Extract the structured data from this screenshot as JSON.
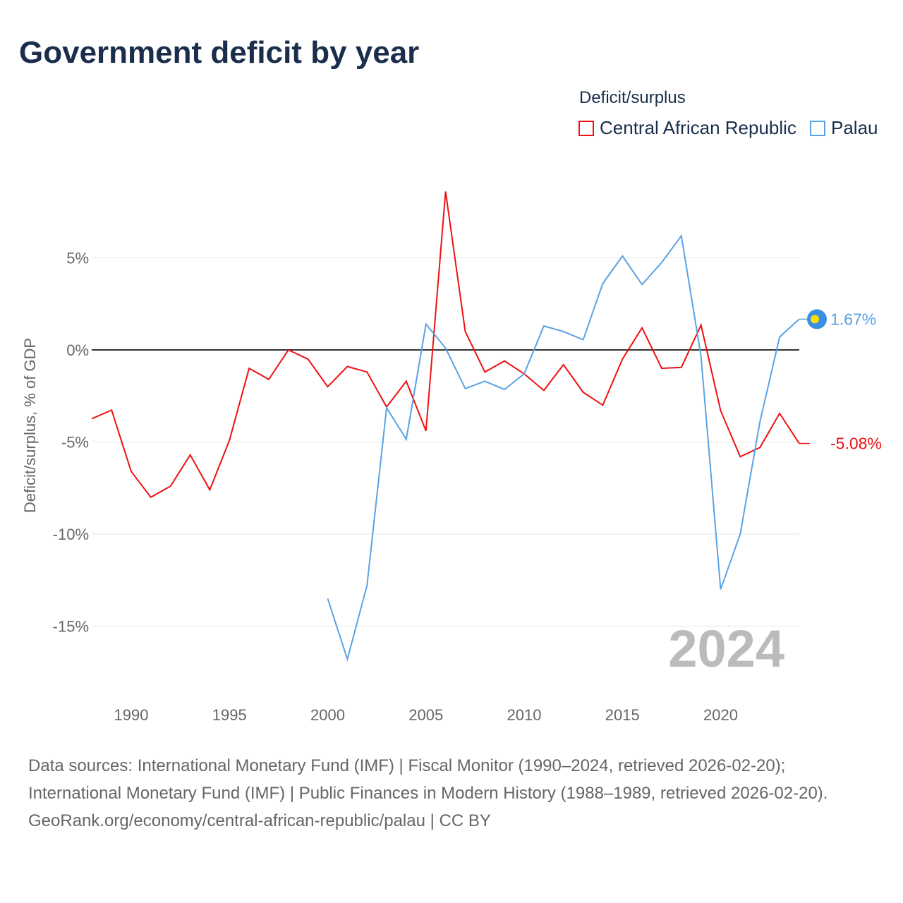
{
  "title": "Government deficit by year",
  "legend_title": "Deficit/surplus",
  "footer": {
    "sources": "Data sources: International Monetary Fund (IMF) | Fiscal Monitor (1990–2024, retrieved 2026-02-20); International Monetary Fund (IMF) | Public Finances in Modern History (1988–1989, retrieved 2026-02-20).",
    "credit": "GeoRank.org/economy/central-african-republic/palau | CC BY"
  },
  "chart_data": {
    "type": "line",
    "title": "Government deficit by year",
    "xlabel": "",
    "ylabel": "Deficit/surplus, % of GDP",
    "xlim": [
      1988,
      2024
    ],
    "ylim": [
      -17.5,
      9
    ],
    "x_ticks": [
      1990,
      1995,
      2000,
      2005,
      2010,
      2015,
      2020
    ],
    "x_tick_labels": [
      "1990",
      "1995",
      "2000",
      "2005",
      "2010",
      "2015",
      "2020"
    ],
    "y_ticks": [
      5,
      0,
      -5,
      -10,
      -15
    ],
    "y_tick_labels": [
      "5%",
      "0%",
      "-5%",
      "-10%",
      "-15%"
    ],
    "year_watermark": "2024",
    "legend_placement": "top-right",
    "series": [
      {
        "name": "Central African Republic",
        "color": "#ee1111",
        "end_label": "-5.08%",
        "x_start": 1988,
        "values": [
          -3.73,
          -3.27,
          -6.6,
          -8.0,
          -7.4,
          -5.7,
          -7.6,
          -4.9,
          -1.0,
          -1.6,
          0.0,
          -0.5,
          -2.0,
          -0.9,
          -1.2,
          -3.1,
          -1.7,
          -4.4,
          8.6,
          1.0,
          -1.2,
          -0.6,
          -1.3,
          -2.2,
          -0.8,
          -2.3,
          -3.0,
          -0.5,
          1.2,
          -1.0,
          -0.95,
          1.35,
          -3.3,
          -5.8,
          -5.3,
          -3.45,
          -5.08
        ]
      },
      {
        "name": "Palau",
        "color": "#5aa2e6",
        "end_label": "1.67%",
        "x_start": 2000,
        "values": [
          -13.5,
          -16.8,
          -12.8,
          -3.15,
          -4.85,
          1.4,
          0.1,
          -2.1,
          -1.7,
          -2.15,
          -1.3,
          1.3,
          1.0,
          0.55,
          3.6,
          5.1,
          3.55,
          4.75,
          6.2,
          -0.35,
          -13.0,
          -10.0,
          -3.9,
          0.7,
          1.67
        ]
      }
    ]
  }
}
